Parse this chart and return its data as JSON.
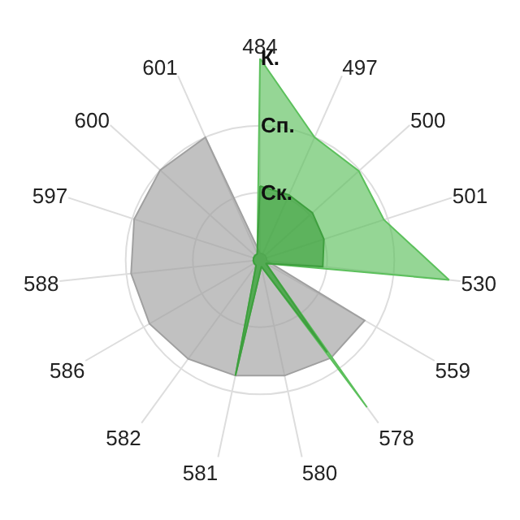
{
  "chart_data": {
    "type": "radar",
    "categories": [
      "484",
      "497",
      "500",
      "501",
      "530",
      "559",
      "578",
      "580",
      "581",
      "582",
      "586",
      "588",
      "597",
      "600",
      "601"
    ],
    "series": [
      {
        "color": "#a0a0a0",
        "values": [
          0.1,
          0.1,
          0.1,
          0.1,
          0.1,
          1.8,
          1.8,
          1.76,
          1.76,
          1.82,
          1.9,
          1.93,
          1.97,
          2.0,
          2.0
        ]
      },
      {
        "color": "#5cc05c",
        "values": [
          3.0,
          2.0,
          1.98,
          1.94,
          2.83,
          0.1,
          2.71,
          0.1,
          1.76,
          0.1,
          0.1,
          0.1,
          0.1,
          0.1,
          0.1
        ]
      },
      {
        "color": "#3f9f3f",
        "values": [
          1.1,
          1.06,
          1.05,
          1.0,
          0.94,
          0.1,
          1.7,
          0.1,
          1.76,
          0.1,
          0.1,
          0.1,
          0.1,
          0.1,
          0.1
        ]
      }
    ],
    "ylim": [
      0,
      3
    ],
    "yticks": [
      {
        "value": 1,
        "label": "Ск."
      },
      {
        "value": 2,
        "label": "Сп."
      },
      {
        "value": 3,
        "label": "К."
      }
    ],
    "grid": true,
    "marker": "none",
    "line_style": "solid"
  }
}
